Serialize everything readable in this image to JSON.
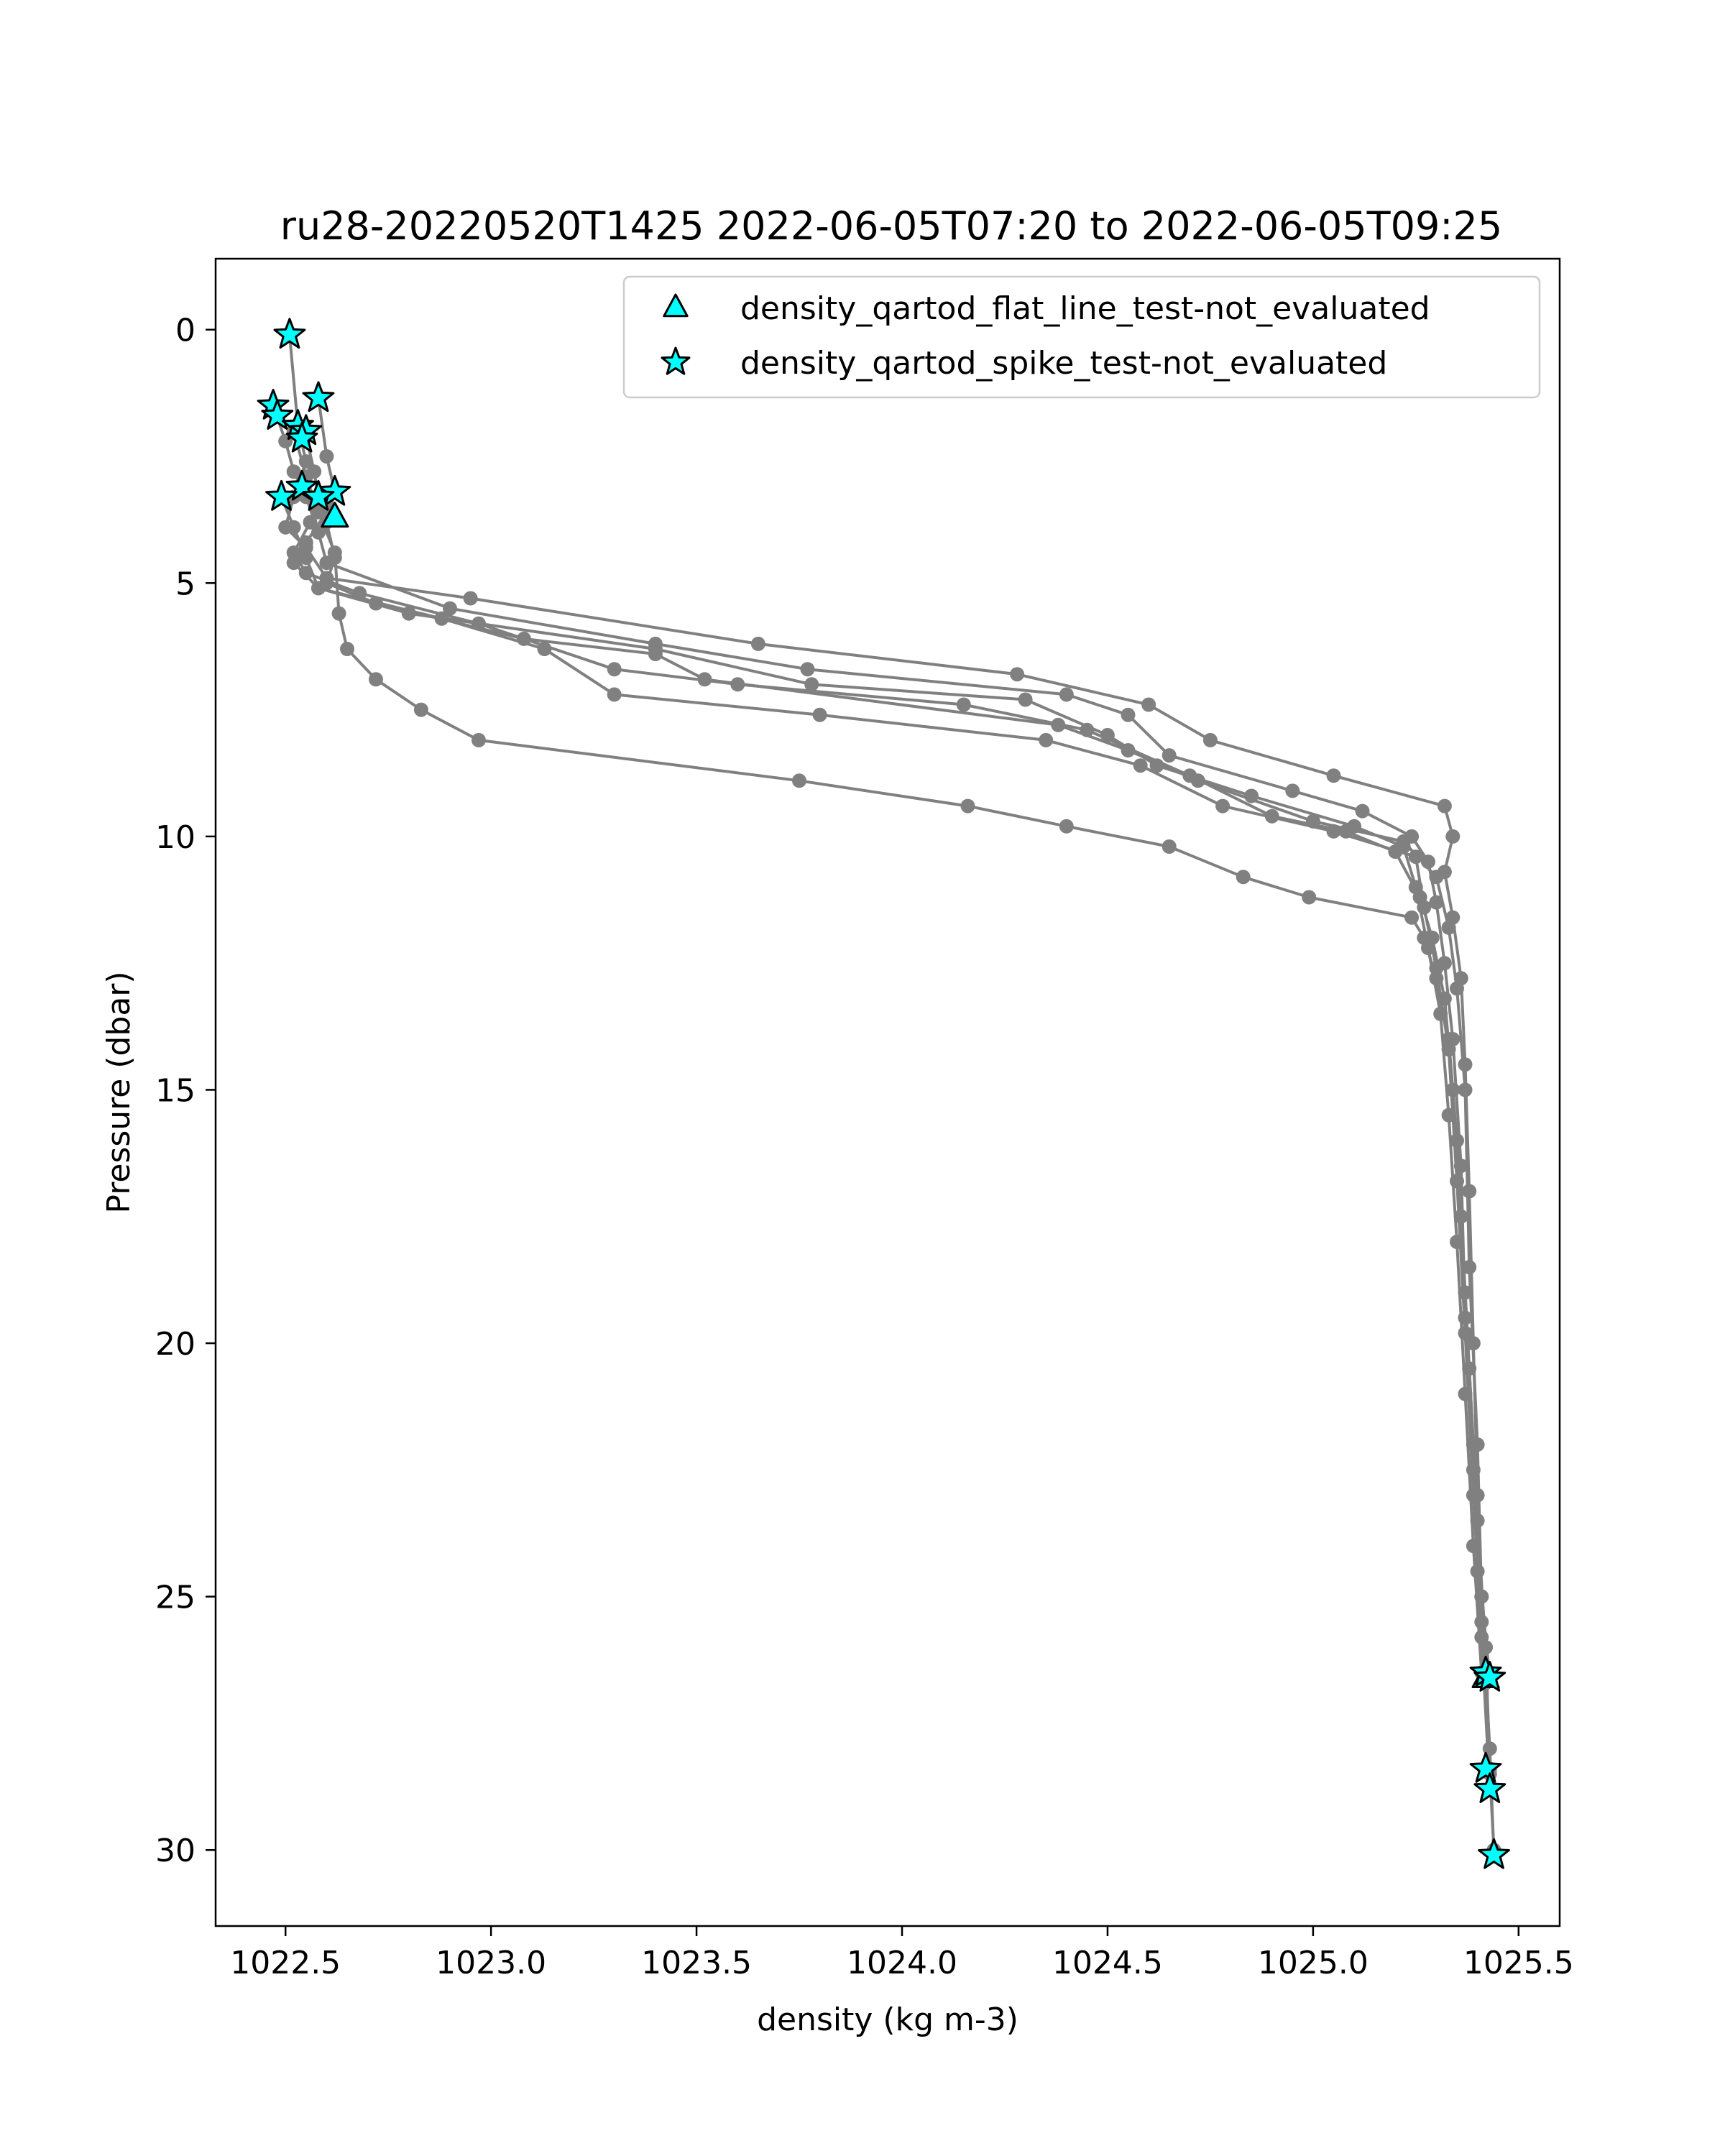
{
  "chart_data": {
    "type": "line",
    "title": "ru28-20220520T1425 2022-06-05T07:20 to 2022-06-05T09:25",
    "xlabel": "density (kg m-3)",
    "ylabel": "Pressure (dbar)",
    "xlim": [
      1022.33,
      1025.6
    ],
    "ylim": [
      31.5,
      -1.4
    ],
    "y_inverted": true,
    "grid": false,
    "legend_position": "top-right",
    "x_ticks": [
      "1022.5",
      "1023.0",
      "1023.5",
      "1024.0",
      "1024.5",
      "1025.0",
      "1025.5"
    ],
    "y_ticks": [
      "0",
      "5",
      "10",
      "15",
      "20",
      "25",
      "30"
    ],
    "x_tick_values": [
      1022.5,
      1023.0,
      1023.5,
      1024.0,
      1024.5,
      1025.0,
      1025.5
    ],
    "y_tick_values": [
      0,
      5,
      10,
      15,
      20,
      25,
      30
    ],
    "colors": {
      "profile": "#808080",
      "flag_fill": "#00ffff",
      "flag_edge": "#000000"
    },
    "series": [
      {
        "style": "profile",
        "points": [
          [
            1022.51,
            0.1
          ],
          [
            1022.53,
            1.9
          ],
          [
            1022.55,
            2.6
          ],
          [
            1022.52,
            3.3
          ],
          [
            1022.5,
            3.9
          ],
          [
            1022.55,
            4.3
          ],
          [
            1022.6,
            4.9
          ],
          [
            1022.95,
            5.3
          ],
          [
            1023.65,
            6.2
          ],
          [
            1024.28,
            6.8
          ],
          [
            1024.6,
            7.4
          ],
          [
            1024.75,
            8.1
          ],
          [
            1025.05,
            8.8
          ],
          [
            1025.32,
            9.4
          ],
          [
            1025.34,
            10.0
          ],
          [
            1025.32,
            10.7
          ],
          [
            1025.34,
            11.6
          ],
          [
            1025.36,
            12.8
          ],
          [
            1025.37,
            14.5
          ],
          [
            1025.38,
            17.0
          ],
          [
            1025.39,
            20.0
          ],
          [
            1025.4,
            23.0
          ],
          [
            1025.41,
            25.5
          ],
          [
            1025.42,
            26.5
          ]
        ]
      },
      {
        "style": "profile",
        "points": [
          [
            1022.47,
            1.5
          ],
          [
            1022.5,
            2.2
          ],
          [
            1022.52,
            2.8
          ],
          [
            1022.55,
            3.3
          ],
          [
            1022.58,
            4.0
          ],
          [
            1022.6,
            4.6
          ],
          [
            1022.9,
            5.5
          ],
          [
            1023.4,
            6.2
          ],
          [
            1023.77,
            6.7
          ],
          [
            1024.4,
            7.2
          ],
          [
            1024.55,
            7.6
          ],
          [
            1024.65,
            8.4
          ],
          [
            1024.95,
            9.1
          ],
          [
            1025.12,
            9.5
          ],
          [
            1025.24,
            10.0
          ],
          [
            1025.28,
            10.5
          ],
          [
            1025.3,
            11.3
          ],
          [
            1025.32,
            12.5
          ],
          [
            1025.34,
            14.0
          ],
          [
            1025.36,
            16.5
          ],
          [
            1025.37,
            19.5
          ],
          [
            1025.39,
            22.5
          ],
          [
            1025.41,
            25.0
          ],
          [
            1025.42,
            26.6
          ],
          [
            1025.43,
            28.0
          ],
          [
            1025.44,
            30.1
          ]
        ]
      },
      {
        "style": "profile",
        "points": [
          [
            1022.58,
            1.35
          ],
          [
            1022.6,
            2.5
          ],
          [
            1022.62,
            3.2
          ],
          [
            1022.6,
            3.6
          ],
          [
            1022.55,
            4.2
          ],
          [
            1022.52,
            4.6
          ],
          [
            1022.58,
            5.1
          ],
          [
            1022.8,
            5.6
          ],
          [
            1023.4,
            6.3
          ],
          [
            1023.78,
            7.0
          ],
          [
            1024.3,
            7.3
          ],
          [
            1024.5,
            8.0
          ],
          [
            1024.62,
            8.6
          ],
          [
            1024.85,
            9.2
          ],
          [
            1025.1,
            9.8
          ],
          [
            1025.22,
            10.2
          ],
          [
            1025.25,
            11.0
          ],
          [
            1025.28,
            12.2
          ],
          [
            1025.31,
            13.5
          ],
          [
            1025.33,
            15.5
          ],
          [
            1025.35,
            18.0
          ],
          [
            1025.37,
            21.0
          ],
          [
            1025.39,
            24.0
          ],
          [
            1025.41,
            26.5
          ]
        ]
      },
      {
        "style": "profile",
        "points": [
          [
            1022.55,
            2.1
          ],
          [
            1022.57,
            2.8
          ],
          [
            1022.58,
            3.3
          ],
          [
            1022.56,
            3.8
          ],
          [
            1022.52,
            4.4
          ],
          [
            1022.55,
            4.8
          ],
          [
            1022.68,
            5.2
          ],
          [
            1022.97,
            5.8
          ],
          [
            1023.3,
            6.7
          ],
          [
            1023.6,
            7.0
          ],
          [
            1024.15,
            7.4
          ],
          [
            1024.45,
            7.9
          ],
          [
            1024.7,
            8.8
          ],
          [
            1024.9,
            9.6
          ],
          [
            1025.08,
            9.9
          ],
          [
            1025.2,
            10.3
          ],
          [
            1025.26,
            11.2
          ],
          [
            1025.29,
            12.0
          ],
          [
            1025.32,
            13.2
          ],
          [
            1025.34,
            15.0
          ],
          [
            1025.36,
            17.5
          ],
          [
            1025.38,
            20.5
          ],
          [
            1025.4,
            23.5
          ],
          [
            1025.42,
            26.0
          ],
          [
            1025.43,
            28.4
          ]
        ]
      },
      {
        "style": "profile",
        "points": [
          [
            1022.62,
            3.2
          ],
          [
            1022.6,
            3.8
          ],
          [
            1022.62,
            4.5
          ],
          [
            1022.6,
            5.0
          ],
          [
            1022.72,
            5.4
          ],
          [
            1023.08,
            6.1
          ],
          [
            1023.4,
            6.4
          ],
          [
            1023.52,
            6.9
          ],
          [
            1024.38,
            7.8
          ],
          [
            1024.55,
            8.3
          ],
          [
            1024.72,
            8.9
          ],
          [
            1025.0,
            9.7
          ],
          [
            1025.22,
            10.1
          ],
          [
            1025.3,
            10.8
          ],
          [
            1025.33,
            11.8
          ],
          [
            1025.35,
            13.0
          ],
          [
            1025.37,
            15.0
          ],
          [
            1025.38,
            18.5
          ],
          [
            1025.4,
            22.0
          ],
          [
            1025.41,
            25.0
          ],
          [
            1025.43,
            26.6
          ]
        ]
      },
      {
        "style": "profile",
        "points": [
          [
            1022.49,
            3.3
          ],
          [
            1022.52,
            3.9
          ],
          [
            1022.55,
            4.5
          ],
          [
            1022.58,
            5.1
          ],
          [
            1022.88,
            5.7
          ],
          [
            1023.13,
            6.3
          ],
          [
            1023.3,
            7.2
          ],
          [
            1023.8,
            7.6
          ],
          [
            1024.35,
            8.1
          ],
          [
            1024.58,
            8.6
          ],
          [
            1024.78,
            9.4
          ],
          [
            1025.05,
            9.9
          ],
          [
            1025.25,
            10.4
          ],
          [
            1025.27,
            11.4
          ],
          [
            1025.3,
            12.6
          ],
          [
            1025.33,
            14.2
          ],
          [
            1025.35,
            16.8
          ],
          [
            1025.37,
            19.8
          ],
          [
            1025.39,
            23.0
          ],
          [
            1025.41,
            25.8
          ],
          [
            1025.43,
            28.8
          ]
        ]
      },
      {
        "style": "profile",
        "points": [
          [
            1022.52,
            2.0
          ],
          [
            1022.55,
            2.9
          ],
          [
            1022.58,
            3.6
          ],
          [
            1022.62,
            4.4
          ],
          [
            1022.63,
            5.6
          ],
          [
            1022.65,
            6.3
          ],
          [
            1022.72,
            6.9
          ],
          [
            1022.83,
            7.5
          ],
          [
            1022.97,
            8.1
          ],
          [
            1023.75,
            8.9
          ],
          [
            1024.16,
            9.4
          ],
          [
            1024.4,
            9.8
          ],
          [
            1024.65,
            10.2
          ],
          [
            1024.83,
            10.8
          ],
          [
            1024.99,
            11.2
          ],
          [
            1025.24,
            11.6
          ],
          [
            1025.27,
            12.0
          ],
          [
            1025.3,
            12.8
          ],
          [
            1025.33,
            14.0
          ],
          [
            1025.35,
            16.0
          ],
          [
            1025.37,
            19.0
          ],
          [
            1025.39,
            22.0
          ],
          [
            1025.4,
            24.5
          ],
          [
            1025.42,
            26.7
          ],
          [
            1025.43,
            28.5
          ],
          [
            1025.44,
            30.0
          ]
        ]
      }
    ],
    "flagged_series": [
      {
        "name": "density_qartod_flat_line_test-not_evaluated",
        "marker": "triangle",
        "points": [
          [
            1022.62,
            3.7
          ],
          [
            1025.42,
            26.6
          ]
        ]
      },
      {
        "name": "density_qartod_spike_test-not_evaluated",
        "marker": "star",
        "points": [
          [
            1022.51,
            0.1
          ],
          [
            1022.58,
            1.35
          ],
          [
            1022.47,
            1.5
          ],
          [
            1022.48,
            1.7
          ],
          [
            1022.53,
            1.9
          ],
          [
            1022.55,
            2.0
          ],
          [
            1022.54,
            2.15
          ],
          [
            1022.54,
            3.1
          ],
          [
            1022.62,
            3.2
          ],
          [
            1022.49,
            3.3
          ],
          [
            1022.58,
            3.3
          ],
          [
            1025.42,
            26.5
          ],
          [
            1025.43,
            26.6
          ],
          [
            1025.42,
            28.4
          ],
          [
            1025.43,
            28.8
          ],
          [
            1025.44,
            30.1
          ]
        ]
      }
    ]
  }
}
